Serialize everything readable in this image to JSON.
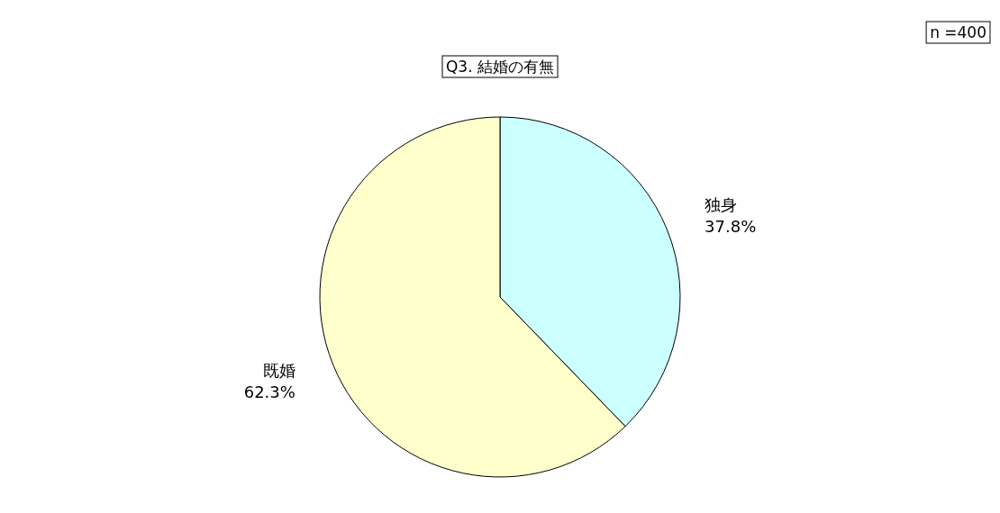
{
  "chart_data": {
    "type": "pie",
    "title": "Q3. 結婚の有無",
    "categories": [
      "独身",
      "既婚"
    ],
    "values": [
      37.8,
      62.3
    ],
    "colors": [
      "#ccffff",
      "#ffffcc"
    ],
    "value_labels": [
      "37.8%",
      "62.3%"
    ],
    "annotations": [
      "n =400"
    ]
  }
}
